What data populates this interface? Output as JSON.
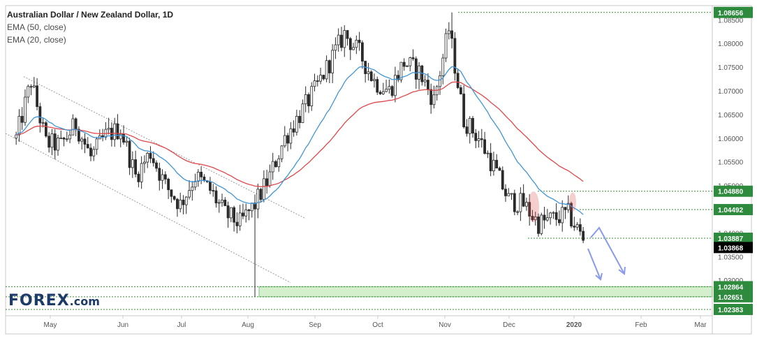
{
  "chart_data": {
    "type": "candlestick",
    "title": "Australian Dollar / New Zealand Dollar, 1D",
    "indicators": [
      {
        "name": "EMA (50, close)",
        "color": "#e0484a"
      },
      {
        "name": "EMA (20, close)",
        "color": "#3f95d8"
      }
    ],
    "x_axis_labels": [
      "May",
      "Jun",
      "Jul",
      "Aug",
      "Sep",
      "Oct",
      "Nov",
      "Dec",
      "2020",
      "Feb",
      "Mar"
    ],
    "y_axis_ticks": [
      "1.08500",
      "1.08000",
      "1.07500",
      "1.07000",
      "1.06500",
      "1.06000",
      "1.05500",
      "1.05000",
      "1.04500",
      "1.04000",
      "1.03500",
      "1.03000"
    ],
    "ylim": [
      1.0225,
      1.088
    ],
    "price_levels": [
      {
        "value": 1.08656,
        "label": "1.08656"
      },
      {
        "value": 1.0488,
        "label": "1.04880"
      },
      {
        "value": 1.04492,
        "label": "1.04492"
      },
      {
        "value": 1.03887,
        "label": "1.03887"
      },
      {
        "value": 1.02864,
        "label": "1.02864"
      },
      {
        "value": 1.02651,
        "label": "1.02651"
      },
      {
        "value": 1.02383,
        "label": "1.02383"
      }
    ],
    "current_price": {
      "value": 1.03868,
      "label": "1.03868",
      "color": "#000000"
    },
    "close_path": [
      {
        "date": "2019-04-15",
        "close": 1.06
      },
      {
        "date": "2019-04-22",
        "close": 1.072
      },
      {
        "date": "2019-04-29",
        "close": 1.059
      },
      {
        "date": "2019-05-06",
        "close": 1.0585
      },
      {
        "date": "2019-05-13",
        "close": 1.063
      },
      {
        "date": "2019-05-20",
        "close": 1.056
      },
      {
        "date": "2019-05-27",
        "close": 1.0605
      },
      {
        "date": "2019-06-03",
        "close": 1.062
      },
      {
        "date": "2019-06-10",
        "close": 1.052
      },
      {
        "date": "2019-06-17",
        "close": 1.057
      },
      {
        "date": "2019-06-24",
        "close": 1.05
      },
      {
        "date": "2019-07-01",
        "close": 1.046
      },
      {
        "date": "2019-07-08",
        "close": 1.052
      },
      {
        "date": "2019-07-15",
        "close": 1.049
      },
      {
        "date": "2019-07-22",
        "close": 1.044
      },
      {
        "date": "2019-07-29",
        "close": 1.042
      },
      {
        "date": "2019-08-05",
        "close": 1.046
      },
      {
        "date": "2019-08-12",
        "close": 1.052
      },
      {
        "date": "2019-08-19",
        "close": 1.06
      },
      {
        "date": "2019-08-26",
        "close": 1.065
      },
      {
        "date": "2019-09-02",
        "close": 1.07
      },
      {
        "date": "2019-09-09",
        "close": 1.076
      },
      {
        "date": "2019-09-16",
        "close": 1.082
      },
      {
        "date": "2019-09-23",
        "close": 1.078
      },
      {
        "date": "2019-09-30",
        "close": 1.072
      },
      {
        "date": "2019-10-07",
        "close": 1.07
      },
      {
        "date": "2019-10-14",
        "close": 1.076
      },
      {
        "date": "2019-10-21",
        "close": 1.074
      },
      {
        "date": "2019-10-28",
        "close": 1.068
      },
      {
        "date": "2019-11-04",
        "close": 1.083
      },
      {
        "date": "2019-11-11",
        "close": 1.064
      },
      {
        "date": "2019-11-18",
        "close": 1.06
      },
      {
        "date": "2019-11-25",
        "close": 1.054
      },
      {
        "date": "2019-12-02",
        "close": 1.047
      },
      {
        "date": "2019-12-09",
        "close": 1.046
      },
      {
        "date": "2019-12-16",
        "close": 1.042
      },
      {
        "date": "2019-12-23",
        "close": 1.043
      },
      {
        "date": "2019-12-30",
        "close": 1.044
      },
      {
        "date": "2020-01-06",
        "close": 1.0387
      }
    ],
    "grid": false,
    "legend_position": "top-left"
  },
  "watermark": {
    "text_main": "FOREX",
    "text_suffix": ".com"
  },
  "colors": {
    "up": "#2a2a2a",
    "down": "#2a2a2a",
    "ema20": "#3f95d8",
    "ema50": "#e0484a",
    "zone": "#c9ecc0",
    "arrow": "#8899ee"
  }
}
